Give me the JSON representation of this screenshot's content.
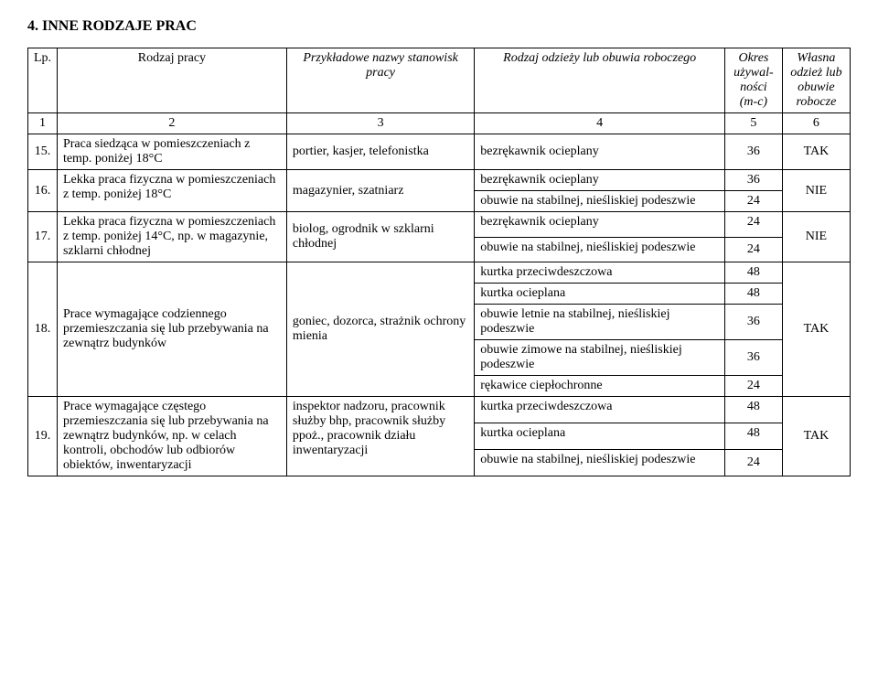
{
  "title": "4.   INNE RODZAJE PRAC",
  "headers": {
    "lp": "Lp.",
    "rodzaj": "Rodzaj pracy",
    "stanowisk": "Przykładowe nazwy stanowisk pracy",
    "odziez": "Rodzaj odzieży lub obuwia roboczego",
    "okres": "Okres używal-ności (m-c)",
    "wlasna": "Własna odzież lub obuwie robocze"
  },
  "numrow": {
    "c1": "1",
    "c2": "2",
    "c3": "3",
    "c4": "4",
    "c5": "5",
    "c6": "6"
  },
  "r15": {
    "lp": "15.",
    "rodzaj": "Praca siedząca w pomieszczeniach z temp. poniżej 18°C",
    "stan": "portier, kasjer, telefonistka",
    "odz": "bezrękawnik ocieplany",
    "okres": "36",
    "wl": "TAK"
  },
  "r16": {
    "lp": "16.",
    "rodzaj": "Lekka praca fizyczna w pomieszczeniach z temp. poniżej 18°C",
    "stan": "magazynier, szatniarz",
    "o1": "bezrękawnik ocieplany",
    "k1": "36",
    "o2": "obuwie na stabilnej, nieśliskiej podeszwie",
    "k2": "24",
    "wl": "NIE"
  },
  "r17": {
    "lp": "17.",
    "rodzaj": "Lekka praca fizyczna w pomieszczeniach z temp. poniżej 14°C, np. w magazynie, szklarni chłodnej",
    "stan": "biolog, ogrodnik w szklarni chłodnej",
    "o1": "bezrękawnik ocieplany",
    "k1": "24",
    "o2": "obuwie na stabilnej, nieśliskiej podeszwie",
    "k2": "24",
    "wl": "NIE"
  },
  "r18": {
    "lp": "18.",
    "rodzaj": "Prace wymagające codziennego przemieszczania się lub przebywania na zewnątrz budynków",
    "stan": "goniec, dozorca, strażnik ochrony mienia",
    "o1": "kurtka przeciwdeszczowa",
    "k1": "48",
    "o2": "kurtka ocieplana",
    "k2": "48",
    "o3": "obuwie letnie na stabilnej, nieśliskiej podeszwie",
    "k3": "36",
    "o4": "obuwie zimowe na stabilnej, nieśliskiej podeszwie",
    "k4": "36",
    "o5": "rękawice ciepłochronne",
    "k5": "24",
    "wl": "TAK"
  },
  "r19": {
    "lp": "19.",
    "rodzaj": "Prace wymagające częstego przemieszczania się lub przebywania na zewnątrz budynków, np. w celach kontroli, obchodów lub odbiorów obiektów, inwentaryzacji",
    "stan": "inspektor nadzoru, pracownik służby bhp, pracownik służby ppoż., pracownik działu inwentaryzacji",
    "o1": "kurtka przeciwdeszczowa",
    "k1": "48",
    "o2": "kurtka ocieplana",
    "k2": "48",
    "o3": "obuwie na stabilnej, nieśliskiej podeszwie",
    "k3": "24",
    "wl": "TAK"
  }
}
